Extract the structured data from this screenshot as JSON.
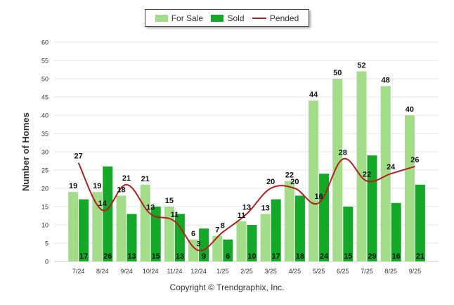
{
  "legend": {
    "for_sale": "For Sale",
    "sold": "Sold",
    "pended": "Pended"
  },
  "copyright": "Copyright © Trendgraphix, Inc.",
  "colors": {
    "for_sale": "#a3dd8a",
    "sold": "#14a829",
    "pended": "#b41e1e",
    "grid": "#e6e6e6",
    "text": "#333333"
  },
  "chart_data": {
    "type": "bar",
    "title": "",
    "xlabel": "",
    "ylabel": "Number of Homes",
    "ylim": [
      0,
      60
    ],
    "yticks": [
      0,
      5,
      10,
      15,
      20,
      25,
      30,
      35,
      40,
      45,
      50,
      55,
      60
    ],
    "grid": true,
    "legend_position": "top-center",
    "categories": [
      "7/24",
      "8/24",
      "9/24",
      "10/24",
      "11/24",
      "12/24",
      "1/25",
      "2/25",
      "3/25",
      "4/25",
      "5/25",
      "6/25",
      "7/25",
      "8/25",
      "9/25"
    ],
    "series": [
      {
        "name": "For Sale",
        "type": "bar",
        "values": [
          19,
          19,
          18,
          21,
          15,
          6,
          7,
          11,
          13,
          22,
          44,
          50,
          52,
          48,
          40
        ]
      },
      {
        "name": "Sold",
        "type": "bar",
        "values": [
          17,
          26,
          13,
          15,
          13,
          9,
          6,
          10,
          17,
          18,
          24,
          15,
          29,
          16,
          21
        ]
      },
      {
        "name": "Pended",
        "type": "line",
        "values": [
          27,
          14,
          21,
          13,
          11,
          3,
          8,
          13,
          20,
          20,
          16,
          28,
          22,
          24,
          26
        ]
      }
    ]
  }
}
